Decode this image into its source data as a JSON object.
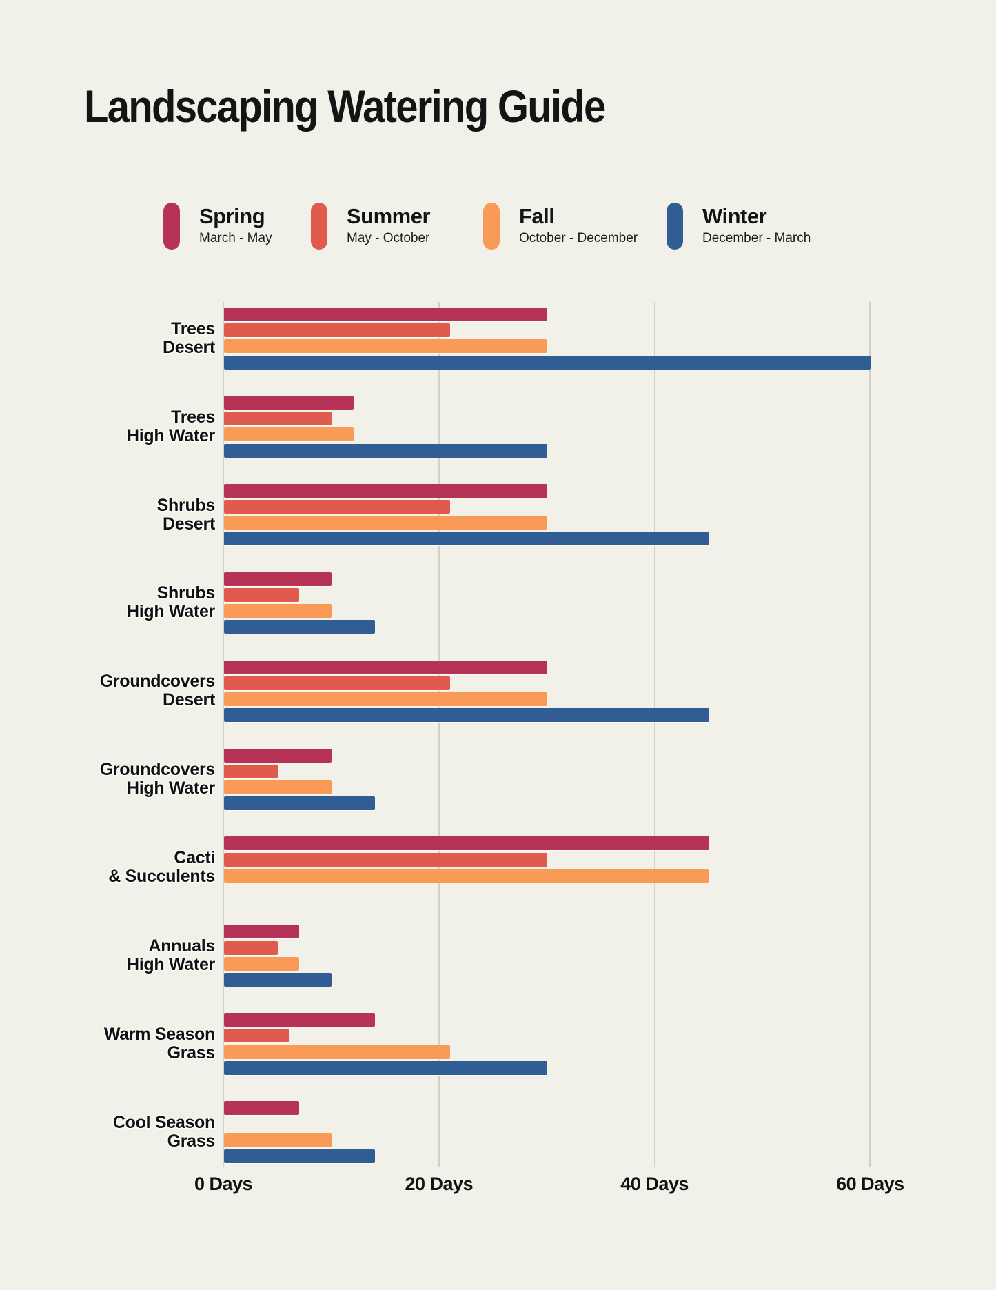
{
  "title": "Landscaping Watering Guide",
  "colors": {
    "background": "#f2f1e9",
    "spring": "#b63357",
    "summer": "#e05a4d",
    "fall": "#fa9a57",
    "winter": "#2f5d94",
    "gridline": "#d2d1c8",
    "text": "#141414"
  },
  "legend": [
    {
      "name": "Spring",
      "range": "March - May",
      "color": "#b63357"
    },
    {
      "name": "Summer",
      "range": "May - October",
      "color": "#e05a4d"
    },
    {
      "name": "Fall",
      "range": "October - December",
      "color": "#fa9a57"
    },
    {
      "name": "Winter",
      "range": "December - March",
      "color": "#2f5d94"
    }
  ],
  "chart_data": {
    "type": "bar",
    "orientation": "horizontal",
    "title": "Landscaping Watering Guide",
    "unit": "days between watering",
    "xlim": [
      0,
      60
    ],
    "grid": true,
    "tick_values": [
      0,
      20,
      40,
      60
    ],
    "tick_labels": [
      "0 Days",
      "20 Days",
      "40 Days",
      "60 Days"
    ],
    "categories": [
      [
        "Trees",
        "Desert"
      ],
      [
        "Trees",
        "High Water"
      ],
      [
        "Shrubs",
        "Desert"
      ],
      [
        "Shrubs",
        "High Water"
      ],
      [
        "Groundcovers",
        "Desert"
      ],
      [
        "Groundcovers",
        "High Water"
      ],
      [
        "Cacti",
        "& Succulents"
      ],
      [
        "Annuals",
        "High Water"
      ],
      [
        "Warm Season",
        "Grass"
      ],
      [
        "Cool Season",
        "Grass"
      ]
    ],
    "series": [
      {
        "name": "Spring",
        "color": "#b63357",
        "values": [
          30,
          12,
          30,
          10,
          30,
          10,
          45,
          7,
          14,
          7
        ]
      },
      {
        "name": "Summer",
        "color": "#e05a4d",
        "values": [
          21,
          10,
          21,
          7,
          21,
          5,
          30,
          5,
          6,
          null
        ]
      },
      {
        "name": "Fall",
        "color": "#fa9a57",
        "values": [
          30,
          12,
          30,
          10,
          30,
          10,
          45,
          7,
          21,
          10
        ]
      },
      {
        "name": "Winter",
        "color": "#2f5d94",
        "values": [
          60,
          30,
          45,
          14,
          45,
          14,
          null,
          10,
          30,
          14
        ]
      }
    ]
  }
}
